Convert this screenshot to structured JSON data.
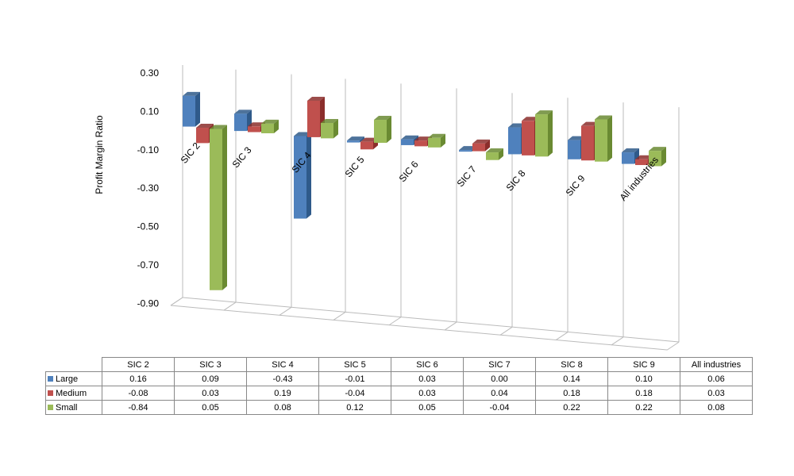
{
  "chart_data": {
    "type": "bar",
    "style": "3d-clustered-column-with-data-table",
    "ylabel": "Profit Margin Ratio",
    "ylim": [
      -0.9,
      0.3
    ],
    "yticks": [
      "0.30",
      "0.10",
      "-0.10",
      "-0.30",
      "-0.50",
      "-0.70",
      "-0.90"
    ],
    "ytick_values": [
      0.3,
      0.1,
      -0.1,
      -0.3,
      -0.5,
      -0.7,
      -0.9
    ],
    "categories": [
      "SIC 2",
      "SIC 3",
      "SIC 4",
      "SIC 5",
      "SIC 6",
      "SIC 7",
      "SIC 8",
      "SIC 9",
      "All industries"
    ],
    "series": [
      {
        "name": "Large",
        "color": "#4F81BD",
        "side": "#2F5A8A",
        "values": [
          0.16,
          0.09,
          -0.43,
          -0.01,
          0.03,
          0.0,
          0.14,
          0.1,
          0.06
        ],
        "labels": [
          "0.16",
          "0.09",
          "-0.43",
          "-0.01",
          "0.03",
          "0.00",
          "0.14",
          "0.10",
          "0.06"
        ]
      },
      {
        "name": "Medium",
        "color": "#C0504D",
        "side": "#8B2E2B",
        "values": [
          -0.08,
          0.03,
          0.19,
          -0.04,
          0.03,
          0.04,
          0.18,
          0.18,
          0.03
        ],
        "labels": [
          "-0.08",
          "0.03",
          "0.19",
          "-0.04",
          "0.03",
          "0.04",
          "0.18",
          "0.18",
          "0.03"
        ]
      },
      {
        "name": "Small",
        "color": "#9BBB59",
        "side": "#6A8A32",
        "values": [
          -0.84,
          0.05,
          0.08,
          0.12,
          0.05,
          -0.04,
          0.22,
          0.22,
          0.08
        ],
        "labels": [
          "-0.84",
          "0.05",
          "0.08",
          "0.12",
          "0.05",
          "-0.04",
          "0.22",
          "0.22",
          "0.08"
        ]
      }
    ],
    "grid": true,
    "legend": "data-table"
  }
}
